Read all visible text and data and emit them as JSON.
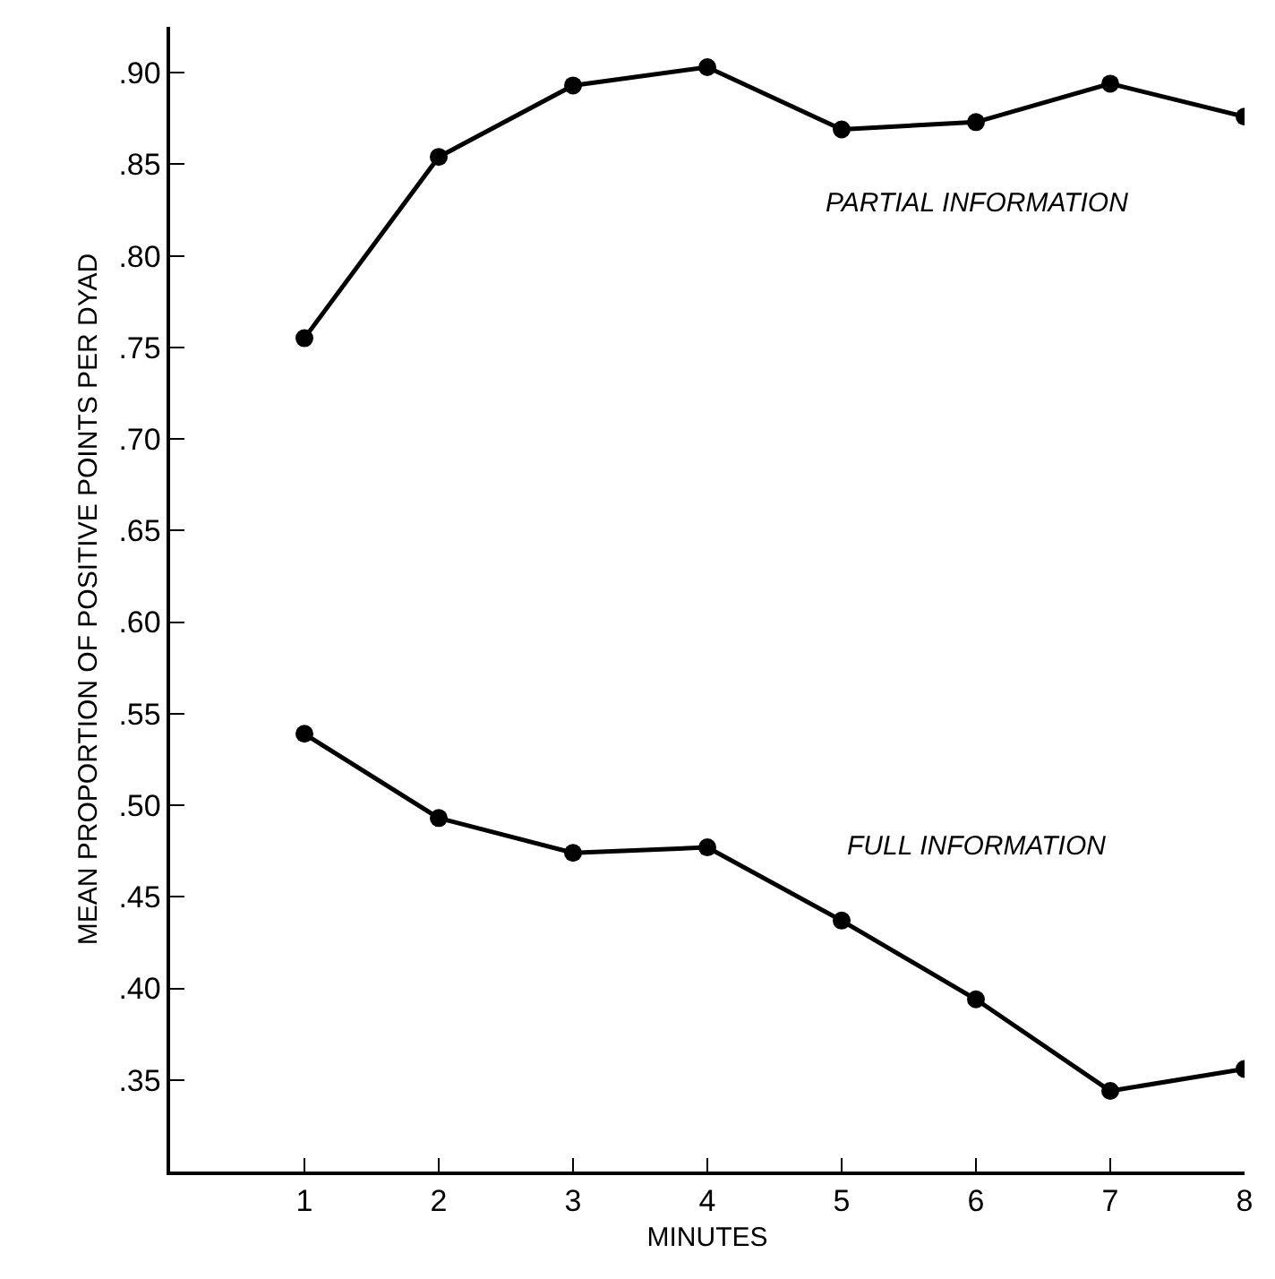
{
  "chart_data": {
    "type": "line",
    "xlabel": "MINUTES",
    "ylabel": "MEAN PROPORTION OF POSITIVE POINTS PER DYAD",
    "x": [
      1,
      2,
      3,
      4,
      5,
      6,
      7,
      8
    ],
    "series": [
      {
        "name": "PARTIAL INFORMATION",
        "color": "#000000",
        "values": [
          0.755,
          0.854,
          0.893,
          0.903,
          0.869,
          0.873,
          0.894,
          0.876
        ]
      },
      {
        "name": "FULL INFORMATION",
        "color": "#000000",
        "values": [
          0.539,
          0.493,
          0.474,
          0.477,
          0.437,
          0.394,
          0.344,
          0.356
        ]
      }
    ],
    "xlim": [
      0,
      8
    ],
    "xticks": [
      1,
      2,
      3,
      4,
      5,
      6,
      7,
      8
    ],
    "ylim": [
      0.3,
      0.925
    ],
    "yticks": [
      {
        "value": 0.9,
        "label": ".90"
      },
      {
        "value": 0.85,
        "label": ".85"
      },
      {
        "value": 0.8,
        "label": ".80"
      },
      {
        "value": 0.75,
        "label": ".75"
      },
      {
        "value": 0.7,
        "label": ".70"
      },
      {
        "value": 0.65,
        "label": ".65"
      },
      {
        "value": 0.6,
        "label": ".60"
      },
      {
        "value": 0.55,
        "label": ".55"
      },
      {
        "value": 0.5,
        "label": ".50"
      },
      {
        "value": 0.45,
        "label": ".45"
      },
      {
        "value": 0.4,
        "label": ".40"
      },
      {
        "value": 0.35,
        "label": ".35"
      }
    ],
    "marker": "circle",
    "line_style": "solid",
    "legend": false
  }
}
